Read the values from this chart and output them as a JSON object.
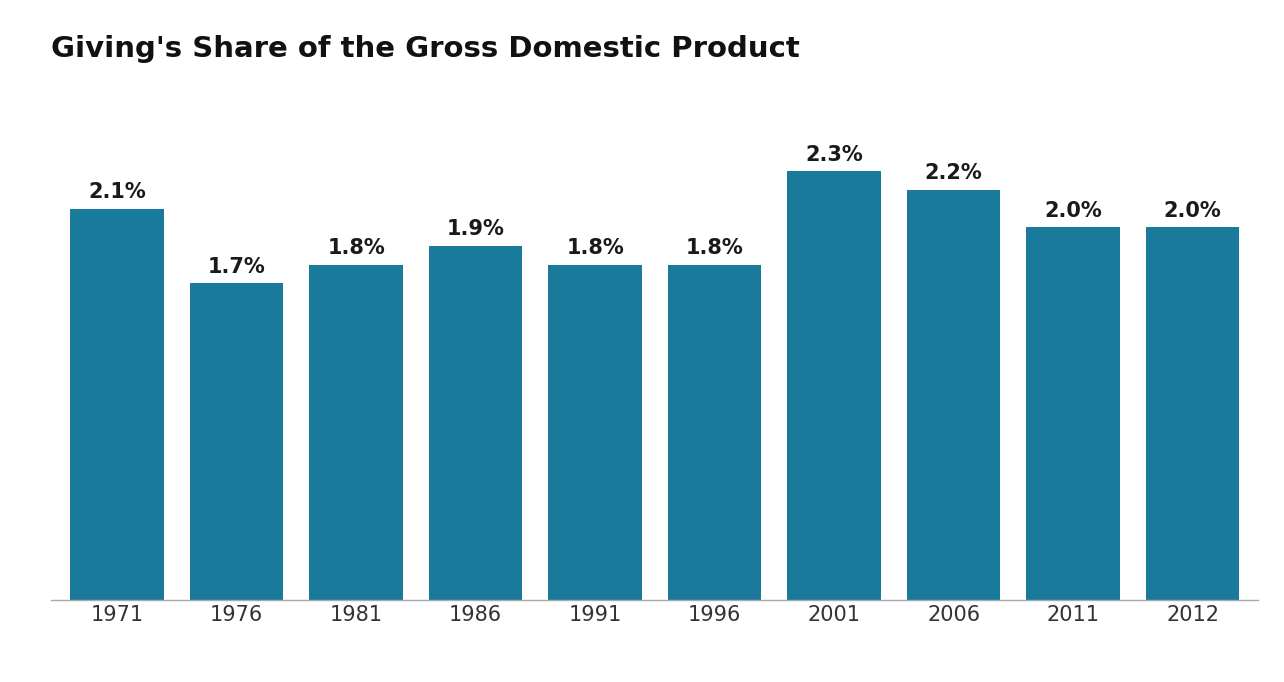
{
  "title": "Giving's Share of the Gross Domestic Product",
  "categories": [
    "1971",
    "1976",
    "1981",
    "1986",
    "1991",
    "1996",
    "2001",
    "2006",
    "2011",
    "2012"
  ],
  "values": [
    2.1,
    1.7,
    1.8,
    1.9,
    1.8,
    1.8,
    2.3,
    2.2,
    2.0,
    2.0
  ],
  "labels": [
    "2.1%",
    "1.7%",
    "1.8%",
    "1.9%",
    "1.8%",
    "1.8%",
    "2.3%",
    "2.2%",
    "2.0%",
    "2.0%"
  ],
  "bar_color": "#1a7a9c",
  "background_color": "#ffffff",
  "title_fontsize": 21,
  "label_fontsize": 15,
  "tick_fontsize": 15,
  "bar_width": 0.78,
  "ylim": [
    0,
    2.78
  ]
}
